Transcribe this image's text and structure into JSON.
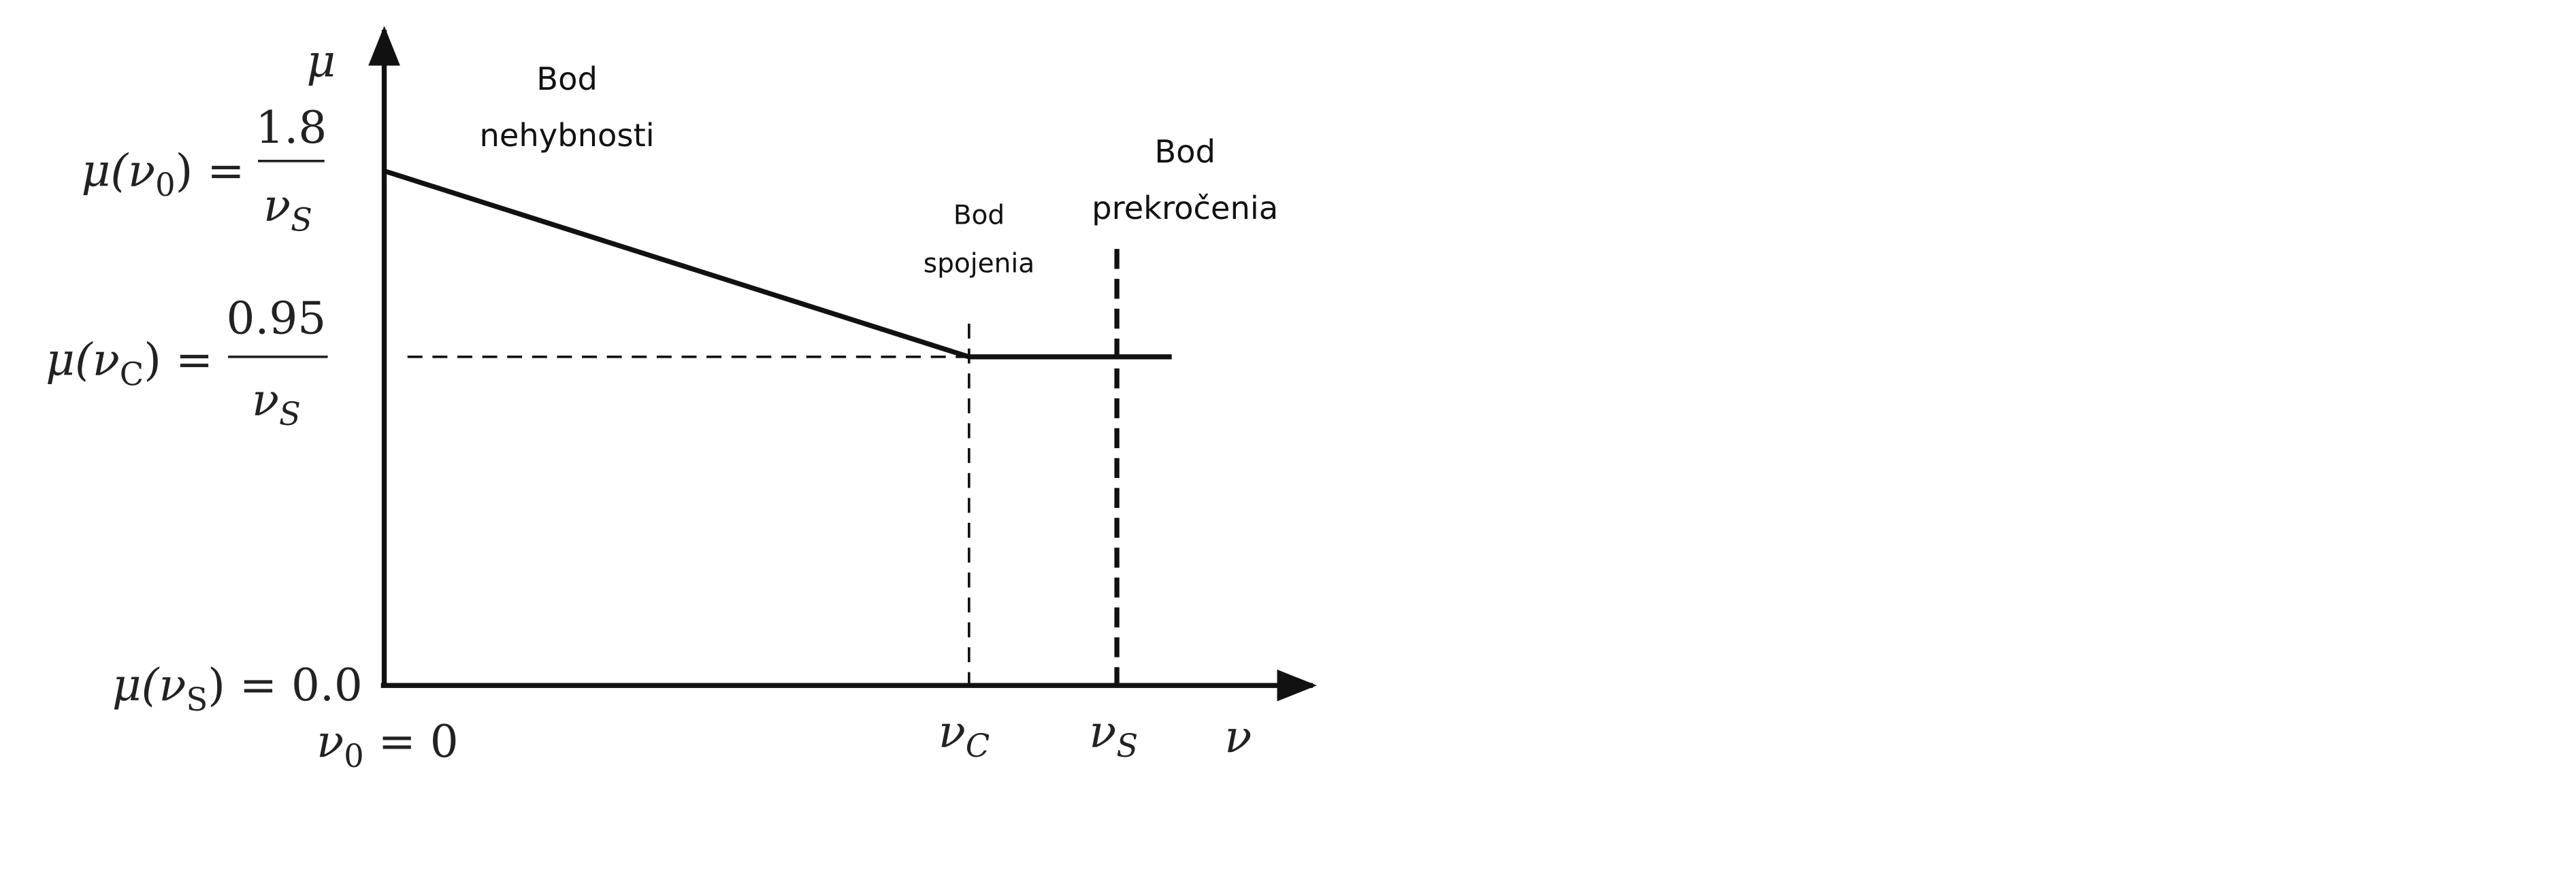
{
  "axes": {
    "y_label": "μ",
    "x_label": "ν"
  },
  "y_labels": [
    {
      "func": "μ(ν",
      "sub": "0",
      "close": ") =",
      "num": "1.8",
      "den": "ν",
      "den_sub": "S"
    },
    {
      "func": "μ(ν",
      "sub": "C",
      "close": ") =",
      "num": "0.95",
      "den": "ν",
      "den_sub": "S"
    },
    {
      "func": "μ(ν",
      "sub": "S",
      "close": ") = 0.0"
    }
  ],
  "x_labels": [
    {
      "base": "ν",
      "sub": "0",
      "rest": " = 0"
    },
    {
      "base": "ν",
      "sub": "C"
    },
    {
      "base": "ν",
      "sub": "S"
    }
  ],
  "annotations": [
    {
      "lines": [
        "Bod",
        "nehybnosti"
      ]
    },
    {
      "lines": [
        "Bod",
        "spojenia"
      ]
    },
    {
      "lines": [
        "Bod",
        "prekročenia"
      ]
    }
  ]
}
